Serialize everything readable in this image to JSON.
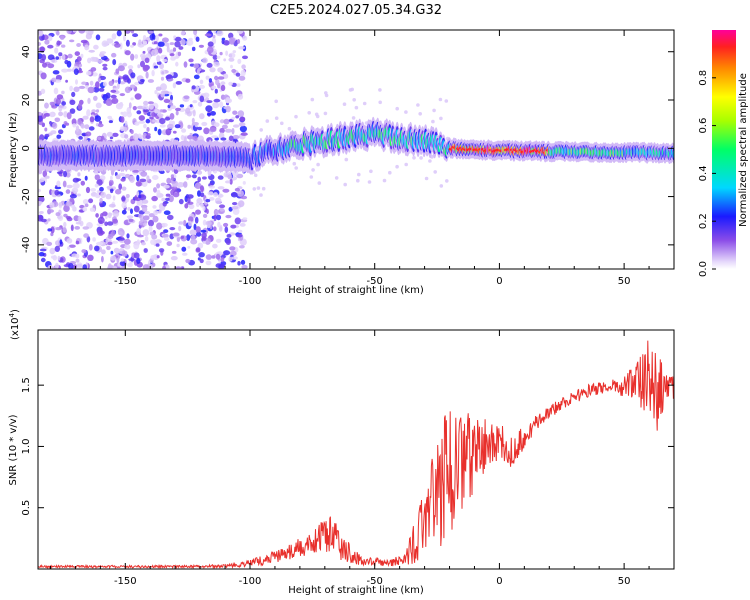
{
  "figure": {
    "title": "C2E5.2024.027.05.34.G32"
  },
  "chart_data": [
    {
      "type": "heatmap",
      "title": "C2E5.2024.027.05.34.G32",
      "xlabel": "Height of straight line (km)",
      "ylabel": "Frequency (Hz)",
      "xlim": [
        -185,
        70
      ],
      "ylim": [
        -50,
        49
      ],
      "xticks": [
        -150,
        -100,
        -50,
        0,
        50
      ],
      "yticks": [
        -40,
        -20,
        0,
        20,
        40
      ],
      "colorbar": {
        "label": "Normalized spectral amplitude",
        "range": [
          0.0,
          1.0
        ],
        "ticks": [
          0.0,
          0.2,
          0.4,
          0.6,
          0.8
        ],
        "colormap": "rainbow (magenta-purple-blue-cyan-green-yellow-orange-red)"
      },
      "band_center_freq": [
        {
          "x": -185,
          "y": -3
        },
        {
          "x": -120,
          "y": -3
        },
        {
          "x": -100,
          "y": -4
        },
        {
          "x": -85,
          "y": 1
        },
        {
          "x": -70,
          "y": 3
        },
        {
          "x": -50,
          "y": 6
        },
        {
          "x": -40,
          "y": 4
        },
        {
          "x": -30,
          "y": 3
        },
        {
          "x": -20,
          "y": 0
        },
        {
          "x": 0,
          "y": -1
        },
        {
          "x": 70,
          "y": -2
        }
      ],
      "noise_region_x": [
        -185,
        -102
      ],
      "peak_region_x": [
        -20,
        20
      ]
    },
    {
      "type": "line",
      "xlabel": "Height of straight line (km)",
      "ylabel": "SNR (10 * v/v)",
      "multiplier_label": "(x10",
      "multiplier_exp": "4",
      "multiplier_close": ")",
      "xlim": [
        -185,
        70
      ],
      "ylim": [
        0,
        1.95
      ],
      "xticks": [
        -150,
        -100,
        -50,
        0,
        50
      ],
      "yticks": [
        0.5,
        1.0,
        1.5
      ],
      "ytick_labels": [
        "0.5",
        "1.0",
        "1.5"
      ],
      "color": "#e8302c",
      "series": [
        {
          "values_x": [
            -185,
            -150,
            -120,
            -105,
            -95,
            -85,
            -75,
            -68,
            -62,
            -55,
            -45,
            -38,
            -33,
            -28,
            -23,
            -18,
            -14,
            -10,
            -5,
            0,
            6,
            8,
            15,
            25,
            35,
            45,
            50,
            55,
            60,
            63,
            66,
            70
          ],
          "values_y": [
            0.02,
            0.02,
            0.02,
            0.03,
            0.07,
            0.13,
            0.22,
            0.3,
            0.15,
            0.07,
            0.05,
            0.08,
            0.25,
            0.5,
            0.72,
            0.85,
            0.9,
            0.95,
            1.02,
            1.05,
            0.95,
            1.02,
            1.2,
            1.35,
            1.45,
            1.5,
            1.48,
            1.55,
            1.58,
            1.45,
            1.48,
            1.48
          ],
          "noise_amplitude": [
            0.01,
            0.01,
            0.01,
            0.015,
            0.04,
            0.06,
            0.1,
            0.17,
            0.1,
            0.04,
            0.03,
            0.05,
            0.2,
            0.35,
            0.55,
            0.55,
            0.45,
            0.3,
            0.2,
            0.15,
            0.15,
            0.12,
            0.06,
            0.05,
            0.05,
            0.05,
            0.1,
            0.2,
            0.35,
            0.35,
            0.15,
            0.1
          ]
        }
      ]
    }
  ]
}
